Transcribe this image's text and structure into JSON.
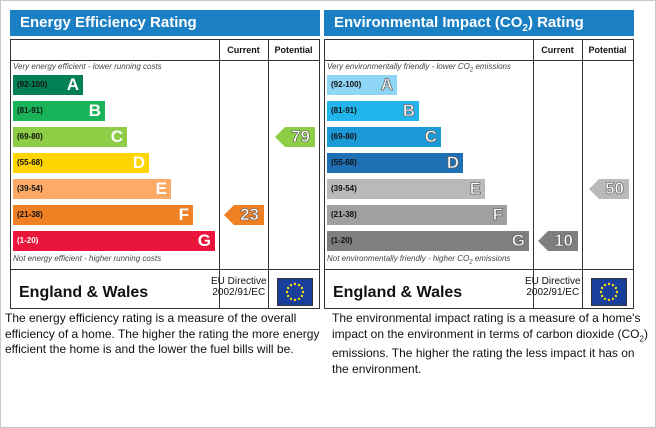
{
  "charts": [
    {
      "title": "Energy Efficiency Rating",
      "col_current": "Current",
      "col_potential": "Potential",
      "top_note": "Very energy efficient - lower running costs",
      "bottom_note": "Not energy efficient - higher running costs",
      "region": "England & Wales",
      "eu_line1": "EU Directive",
      "eu_line2": "2002/91/EC",
      "description": "The energy efficiency rating is a measure of the overall efficiency of a home. The higher the rating the more energy efficient the home is and the lower the fuel bills will be."
    },
    {
      "title_pre": "Environmental Impact (CO",
      "title_sub": "2",
      "title_post": ") Rating",
      "col_current": "Current",
      "col_potential": "Potential",
      "top_note_pre": "Very environmentally friendly - lower CO",
      "top_note_sub": "2",
      "top_note_post": " emissions",
      "bottom_note_pre": "Not environmentally friendly - higher CO",
      "bottom_note_sub": "2",
      "bottom_note_post": " emissions",
      "region": "England & Wales",
      "eu_line1": "EU Directive",
      "eu_line2": "2002/91/EC",
      "description_pre": "The environmental impact rating is a measure of a home's impact on the environment in terms of carbon dioxide (CO",
      "description_sub": "2",
      "description_post": ") emissions. The higher the rating the less impact it has on the environment."
    }
  ],
  "chart_data": [
    {
      "type": "bar",
      "title": "Energy Efficiency Rating",
      "categories": [
        "A",
        "B",
        "C",
        "D",
        "E",
        "F",
        "G"
      ],
      "ranges": [
        "(92-100)",
        "(81-91)",
        "(69-80)",
        "(55-68)",
        "(39-54)",
        "(21-38)",
        "(1-20)"
      ],
      "band_colors": [
        "#008054",
        "#19b459",
        "#8dce46",
        "#ffd500",
        "#fcaa65",
        "#ef8023",
        "#e9153b"
      ],
      "current": 23,
      "current_band": "F",
      "potential": 79,
      "potential_band": "C"
    },
    {
      "type": "bar",
      "title": "Environmental Impact (CO2) Rating",
      "categories": [
        "A",
        "B",
        "C",
        "D",
        "E",
        "F",
        "G"
      ],
      "ranges": [
        "(92-100)",
        "(81-91)",
        "(69-80)",
        "(55-68)",
        "(39-54)",
        "(21-38)",
        "(1-20)"
      ],
      "band_colors": [
        "#8fd5f5",
        "#22b5eb",
        "#1c9ad8",
        "#1e6fb3",
        "#b9b9b9",
        "#a0a0a0",
        "#7f7f7f"
      ],
      "current": 10,
      "current_band": "G",
      "potential": 50,
      "potential_band": "E"
    }
  ]
}
